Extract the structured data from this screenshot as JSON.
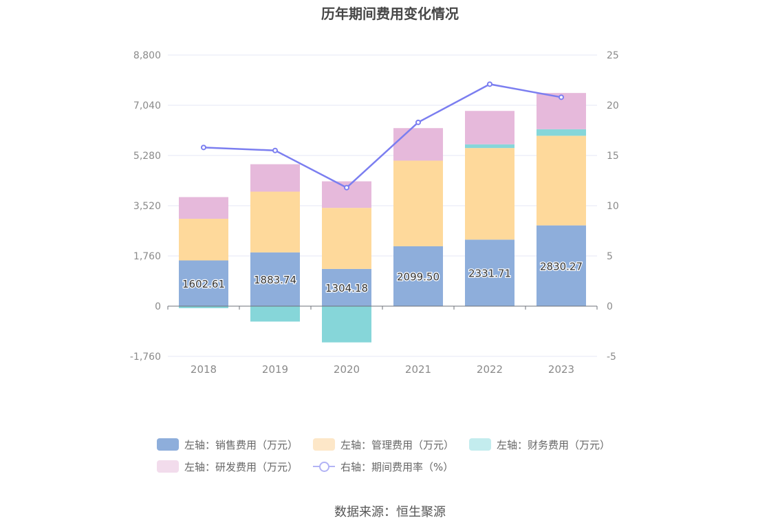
{
  "title": "历年期间费用变化情况",
  "source": "数据来源：恒生聚源",
  "colors": {
    "sales": "#8eaedb",
    "admin": "#fed99b",
    "finance": "#86d6d9",
    "rd": "#e6b9db",
    "rate": "#7b7ef0"
  },
  "legend": [
    {
      "label": "左轴：销售费用（万元）",
      "color": "#8eaedb",
      "swatch_color": "#8eaedb"
    },
    {
      "label": "左轴：管理费用（万元）",
      "color": "#fed99b",
      "swatch_color": "#fde7c8"
    },
    {
      "label": "左轴：财务费用（万元）",
      "color": "#86d6d9",
      "swatch_color": "#c3ecee"
    },
    {
      "label": "左轴：研发费用（万元）",
      "color": "#e6b9db",
      "swatch_color": "#f2dcec"
    },
    {
      "label": "右轴：期间费用率（%）",
      "color": "#b2b3f5",
      "swatch_color": "#b2b3f5"
    }
  ],
  "chart_data": {
    "type": "bar",
    "categories": [
      "2018",
      "2019",
      "2020",
      "2021",
      "2022",
      "2023"
    ],
    "series": [
      {
        "name": "左轴：销售费用（万元）",
        "axis": "left",
        "values": [
          1602.61,
          1883.74,
          1304.18,
          2099.5,
          2331.71,
          2830.27
        ],
        "labels": [
          "1602.61",
          "1883.74",
          "1304.18",
          "2099.50",
          "2331.71",
          "2830.27"
        ]
      },
      {
        "name": "左轴：管理费用（万元）",
        "axis": "left",
        "values": [
          1460,
          2130,
          2140,
          3000,
          3210,
          3140
        ]
      },
      {
        "name": "左轴：财务费用（万元）",
        "axis": "left",
        "values": [
          -70,
          -540,
          -1270,
          0,
          130,
          230
        ]
      },
      {
        "name": "左轴：研发费用（万元）",
        "axis": "left",
        "values": [
          760,
          960,
          930,
          1140,
          1170,
          1270
        ]
      },
      {
        "name": "右轴：期间费用率（%）",
        "axis": "right",
        "type": "line",
        "values": [
          15.8,
          15.5,
          11.8,
          18.3,
          22.1,
          20.8
        ]
      }
    ],
    "y_left": {
      "min": -1760,
      "max": 8800,
      "ticks": [
        -1760,
        0,
        1760,
        3520,
        5280,
        7040,
        8800
      ],
      "tick_labels": [
        "-1,760",
        "0",
        "1,760",
        "3,520",
        "5,280",
        "7,040",
        "8,800"
      ]
    },
    "y_right": {
      "min": -5,
      "max": 25,
      "ticks": [
        -5,
        0,
        5,
        10,
        15,
        20,
        25
      ],
      "tick_labels": [
        "-5",
        "0",
        "5",
        "10",
        "15",
        "20",
        "25"
      ]
    },
    "grid": true,
    "legend_position": "bottom"
  }
}
